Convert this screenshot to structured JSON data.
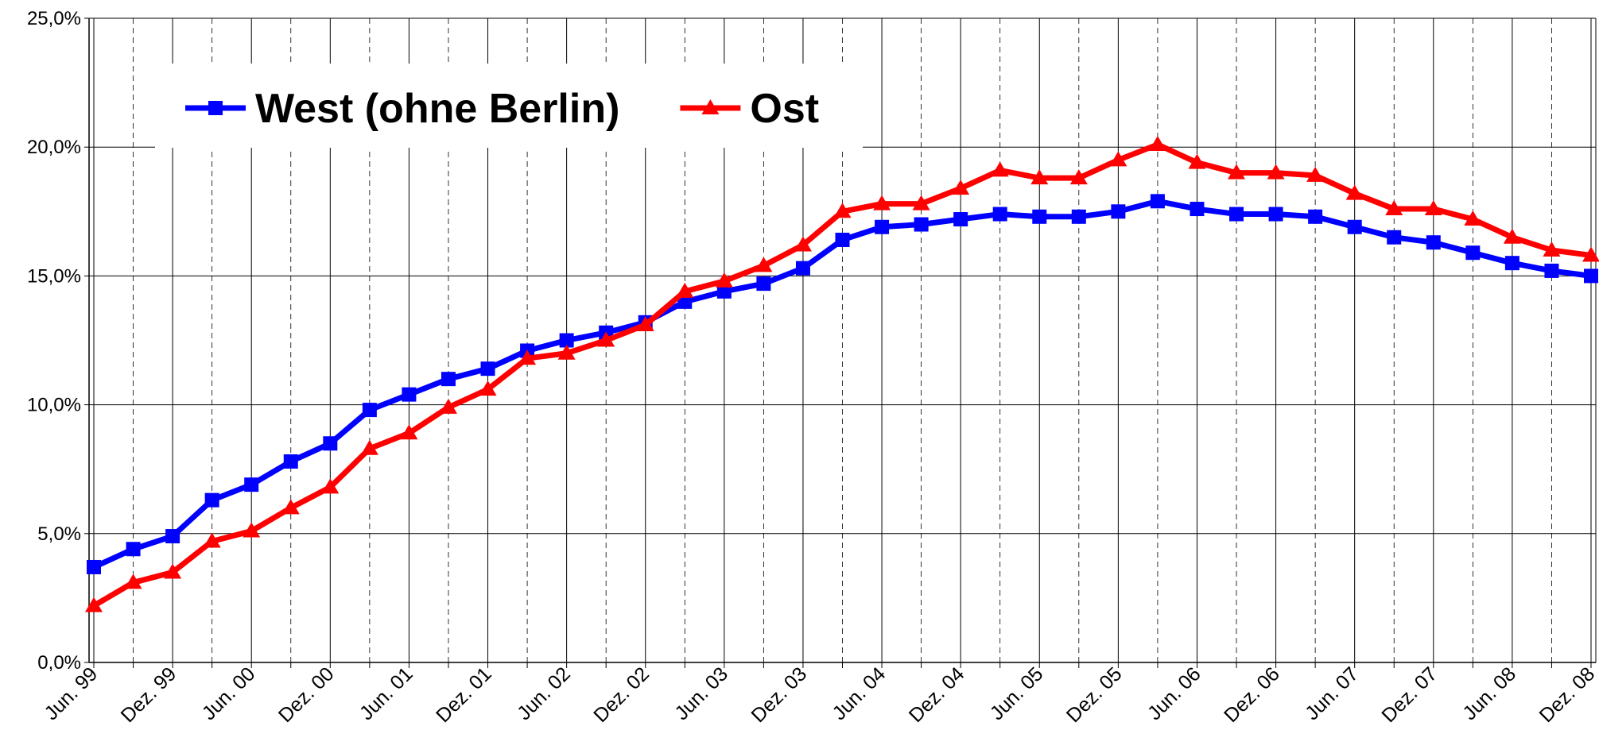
{
  "chart_data": {
    "type": "line",
    "categories": [
      "Jun. 99",
      null,
      "Dez. 99",
      null,
      "Jun. 00",
      null,
      "Dez. 00",
      null,
      "Jun. 01",
      null,
      "Dez. 01",
      null,
      "Jun. 02",
      null,
      "Dez. 02",
      null,
      "Jun. 03",
      null,
      "Dez. 03",
      null,
      "Jun. 04",
      null,
      "Dez. 04",
      null,
      "Jun. 05",
      null,
      "Dez. 05",
      null,
      "Jun. 06",
      null,
      "Dez. 06",
      null,
      "Jun. 07",
      null,
      "Dez. 07",
      null,
      "Jun. 08",
      null,
      "Dez. 08"
    ],
    "series": [
      {
        "name": "West (ohne Berlin)",
        "color": "#0000ff",
        "marker": "square",
        "values": [
          3.7,
          4.4,
          4.9,
          6.3,
          6.9,
          7.8,
          8.5,
          9.8,
          10.4,
          11.0,
          11.4,
          12.1,
          12.5,
          12.8,
          13.2,
          14.0,
          14.4,
          14.7,
          15.3,
          16.4,
          16.9,
          17.0,
          17.2,
          17.4,
          17.3,
          17.3,
          17.5,
          17.9,
          17.6,
          17.4,
          17.4,
          17.3,
          16.9,
          16.5,
          16.3,
          15.9,
          15.5,
          15.2,
          15.0
        ]
      },
      {
        "name": "Ost",
        "color": "#ff0000",
        "marker": "triangle",
        "values": [
          2.2,
          3.1,
          3.5,
          4.7,
          5.1,
          6.0,
          6.8,
          8.3,
          8.9,
          9.9,
          10.6,
          11.8,
          12.0,
          12.5,
          13.1,
          14.4,
          14.8,
          15.4,
          16.2,
          17.5,
          17.8,
          17.8,
          18.4,
          19.1,
          18.8,
          18.8,
          19.5,
          20.1,
          19.4,
          19.0,
          19.0,
          18.9,
          18.2,
          17.6,
          17.6,
          17.2,
          16.5,
          16.0,
          15.8
        ]
      }
    ],
    "ylim": [
      0,
      25
    ],
    "yticks": [
      {
        "value": 0,
        "label": "0,0%"
      },
      {
        "value": 5,
        "label": "5,0%"
      },
      {
        "value": 10,
        "label": "10,0%"
      },
      {
        "value": 15,
        "label": "15,0%"
      },
      {
        "value": 20,
        "label": "20,0%"
      },
      {
        "value": 25,
        "label": "25,0%"
      }
    ],
    "grid": true
  }
}
